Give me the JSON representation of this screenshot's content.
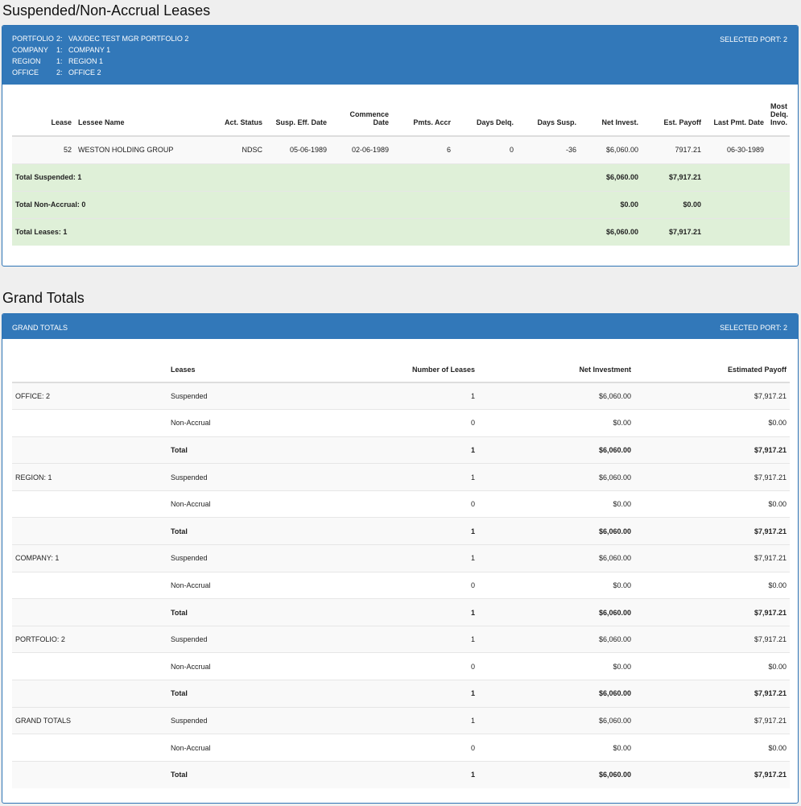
{
  "section1": {
    "title": "Suspended/Non-Accrual Leases",
    "filters": [
      {
        "name": "PORTFOLIO",
        "num": "2:",
        "value": "VAX/DEC TEST MGR PORTFOLIO 2"
      },
      {
        "name": "COMPANY",
        "num": "1:",
        "value": "COMPANY 1"
      },
      {
        "name": "REGION",
        "num": "1:",
        "value": "REGION 1"
      },
      {
        "name": "OFFICE",
        "num": "2:",
        "value": "OFFICE 2"
      }
    ],
    "selected_port": "SELECTED PORT: 2",
    "headers": {
      "lease": "Lease",
      "lessee": "Lessee Name",
      "act_status": "Act. Status",
      "susp_eff": "Susp. Eff. Date",
      "commence_1": "Commence",
      "commence_2": "Date",
      "pmts_accr": "Pmts. Accr",
      "days_delq": "Days Delq.",
      "days_susp": "Days Susp.",
      "net_invest": "Net Invest.",
      "est_payoff": "Est. Payoff",
      "last_pmt": "Last Pmt. Date",
      "most_1": "Most",
      "most_2": "Delq.",
      "most_3": "Invo."
    },
    "rows": [
      {
        "lease": "52",
        "lessee": "WESTON HOLDING GROUP",
        "act_status": "NDSC",
        "susp_eff": "05-06-1989",
        "commence": "02-06-1989",
        "pmts_accr": "6",
        "days_delq": "0",
        "days_susp": "-36",
        "net_invest": "$6,060.00",
        "est_payoff": "7917.21",
        "last_pmt": "06-30-1989",
        "most_delq": ""
      }
    ],
    "totals": [
      {
        "label": "Total Suspended: 1",
        "net_invest": "$6,060.00",
        "est_payoff": "$7,917.21"
      },
      {
        "label": "Total Non-Accrual: 0",
        "net_invest": "$0.00",
        "est_payoff": "$0.00"
      },
      {
        "label": "Total Leases: 1",
        "net_invest": "$6,060.00",
        "est_payoff": "$7,917.21"
      }
    ]
  },
  "section2": {
    "title": "Grand Totals",
    "header_label": "GRAND TOTALS",
    "selected_port": "SELECTED PORT: 2",
    "headers": {
      "group": "",
      "leases": "Leases",
      "number": "Number of Leases",
      "net_investment": "Net Investment",
      "est_payoff": "Estimated Payoff"
    },
    "rows": [
      {
        "group": "OFFICE: 2",
        "type": "Suspended",
        "count": "1",
        "net": "$6,060.00",
        "payoff": "$7,917.21"
      },
      {
        "group": "",
        "type": "Non-Accrual",
        "count": "0",
        "net": "$0.00",
        "payoff": "$0.00"
      },
      {
        "group": "",
        "type": "Total",
        "count": "1",
        "net": "$6,060.00",
        "payoff": "$7,917.21"
      },
      {
        "group": "REGION: 1",
        "type": "Suspended",
        "count": "1",
        "net": "$6,060.00",
        "payoff": "$7,917.21"
      },
      {
        "group": "",
        "type": "Non-Accrual",
        "count": "0",
        "net": "$0.00",
        "payoff": "$0.00"
      },
      {
        "group": "",
        "type": "Total",
        "count": "1",
        "net": "$6,060.00",
        "payoff": "$7,917.21"
      },
      {
        "group": "COMPANY: 1",
        "type": "Suspended",
        "count": "1",
        "net": "$6,060.00",
        "payoff": "$7,917.21"
      },
      {
        "group": "",
        "type": "Non-Accrual",
        "count": "0",
        "net": "$0.00",
        "payoff": "$0.00"
      },
      {
        "group": "",
        "type": "Total",
        "count": "1",
        "net": "$6,060.00",
        "payoff": "$7,917.21"
      },
      {
        "group": "PORTFOLIO: 2",
        "type": "Suspended",
        "count": "1",
        "net": "$6,060.00",
        "payoff": "$7,917.21"
      },
      {
        "group": "",
        "type": "Non-Accrual",
        "count": "0",
        "net": "$0.00",
        "payoff": "$0.00"
      },
      {
        "group": "",
        "type": "Total",
        "count": "1",
        "net": "$6,060.00",
        "payoff": "$7,917.21"
      },
      {
        "group": "GRAND TOTALS",
        "type": "Suspended",
        "count": "1",
        "net": "$6,060.00",
        "payoff": "$7,917.21"
      },
      {
        "group": "",
        "type": "Non-Accrual",
        "count": "0",
        "net": "$0.00",
        "payoff": "$0.00"
      },
      {
        "group": "",
        "type": "Total",
        "count": "1",
        "net": "$6,060.00",
        "payoff": "$7,917.21"
      }
    ]
  }
}
